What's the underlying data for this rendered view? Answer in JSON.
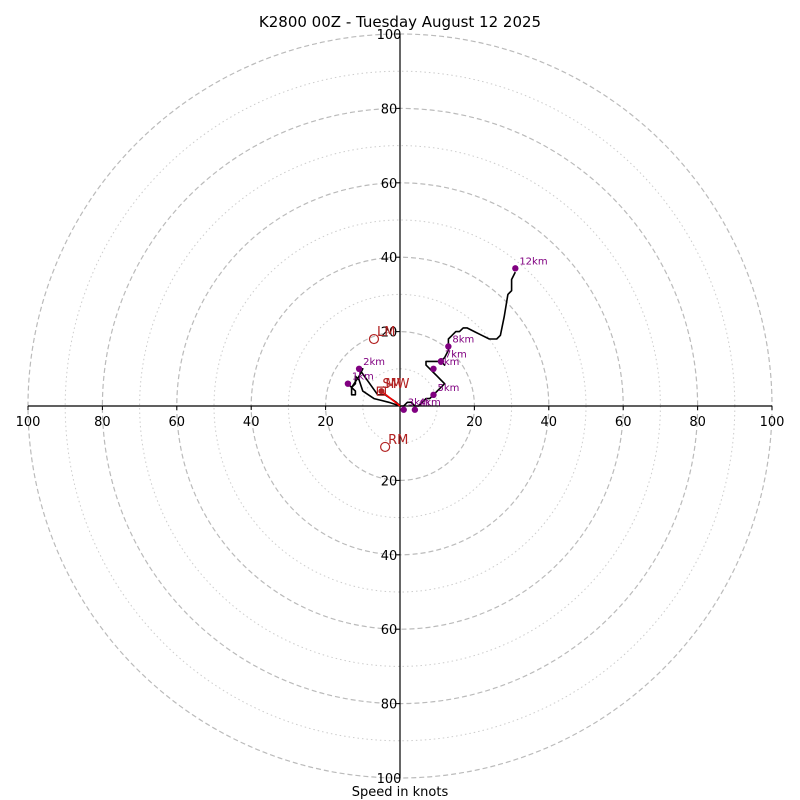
{
  "chart_data": {
    "type": "hodograph",
    "title": "K2800 00Z - Tuesday August 12 2025",
    "xlabel": "Speed in knots",
    "range": [
      -100,
      100
    ],
    "rings_major": [
      20,
      40,
      60,
      80,
      100
    ],
    "rings_minor": [
      10,
      30,
      50,
      70,
      90
    ],
    "x_tick_labels": [
      "100",
      "80",
      "60",
      "40",
      "20",
      "20",
      "40",
      "60",
      "80",
      "100"
    ],
    "x_tick_values": [
      -100,
      -80,
      -60,
      -40,
      -20,
      20,
      40,
      60,
      80,
      100
    ],
    "y_tick_labels": [
      "100",
      "80",
      "60",
      "40",
      "20",
      "20",
      "40",
      "60",
      "80",
      "100"
    ],
    "y_tick_values": [
      100,
      80,
      60,
      40,
      20,
      -20,
      -40,
      -60,
      -80,
      -100
    ],
    "trace": [
      [
        0,
        0
      ],
      [
        -3,
        1
      ],
      [
        -7,
        2
      ],
      [
        -10,
        4
      ],
      [
        -11,
        7
      ],
      [
        -12,
        8
      ],
      [
        -12,
        6
      ],
      [
        -13,
        5
      ],
      [
        -13,
        3
      ],
      [
        -12,
        3
      ],
      [
        -12,
        4
      ],
      [
        -13,
        5
      ],
      [
        -14,
        6
      ],
      [
        -13,
        5
      ],
      [
        -11,
        8
      ],
      [
        -10,
        10
      ],
      [
        -11,
        10
      ],
      [
        -6,
        3
      ],
      [
        -4,
        3
      ],
      [
        -1,
        1
      ],
      [
        0,
        0
      ],
      [
        1,
        0
      ],
      [
        2,
        1
      ],
      [
        3,
        1
      ],
      [
        4,
        0
      ],
      [
        5,
        0
      ],
      [
        6,
        1
      ],
      [
        7,
        2
      ],
      [
        8,
        2
      ],
      [
        9,
        3
      ],
      [
        10,
        4
      ],
      [
        11,
        5
      ],
      [
        12,
        6
      ],
      [
        11,
        7
      ],
      [
        10,
        8
      ],
      [
        9,
        9
      ],
      [
        8,
        10
      ],
      [
        7,
        11
      ],
      [
        7,
        12
      ],
      [
        8,
        12
      ],
      [
        10,
        12
      ],
      [
        11,
        12
      ],
      [
        12,
        11
      ],
      [
        11,
        12
      ],
      [
        12,
        13
      ],
      [
        13,
        15
      ],
      [
        13,
        16
      ],
      [
        13,
        18
      ],
      [
        14,
        19
      ],
      [
        15,
        20
      ],
      [
        16,
        20
      ],
      [
        17,
        21
      ],
      [
        18,
        21
      ],
      [
        20,
        20
      ],
      [
        22,
        19
      ],
      [
        24,
        18
      ],
      [
        26,
        18
      ],
      [
        27,
        19
      ],
      [
        28,
        24
      ],
      [
        29,
        30
      ],
      [
        30,
        31
      ],
      [
        30,
        34
      ],
      [
        31,
        36
      ]
    ],
    "height_markers": [
      {
        "label": "1km",
        "u": -14,
        "v": 6
      },
      {
        "label": "2km",
        "u": -11,
        "v": 10
      },
      {
        "label": "3km",
        "u": 1,
        "v": -1
      },
      {
        "label": "4km",
        "u": 4,
        "v": -1
      },
      {
        "label": "5km",
        "u": 9,
        "v": 3
      },
      {
        "label": "6km",
        "u": 9,
        "v": 10
      },
      {
        "label": "7km",
        "u": 11,
        "v": 12
      },
      {
        "label": "8km",
        "u": 13,
        "v": 16
      },
      {
        "label": "12km",
        "u": 31,
        "v": 37
      }
    ],
    "storm_motions": [
      {
        "label": "LM",
        "u": -7,
        "v": 18
      },
      {
        "label": "RM",
        "u": -4,
        "v": -11
      }
    ],
    "mean_wind": {
      "label": "MW",
      "u": -5,
      "v": 4
    },
    "shear_box": {
      "label": "SM",
      "u": -5,
      "v": 4
    },
    "colors": {
      "trace": "#000000",
      "markers": "#800080",
      "storm_motion": "#b22222",
      "shear_vector": "#ff0000",
      "major_ring": "#bbbbbb",
      "minor_ring": "#cccccc",
      "axis": "#000000"
    }
  }
}
